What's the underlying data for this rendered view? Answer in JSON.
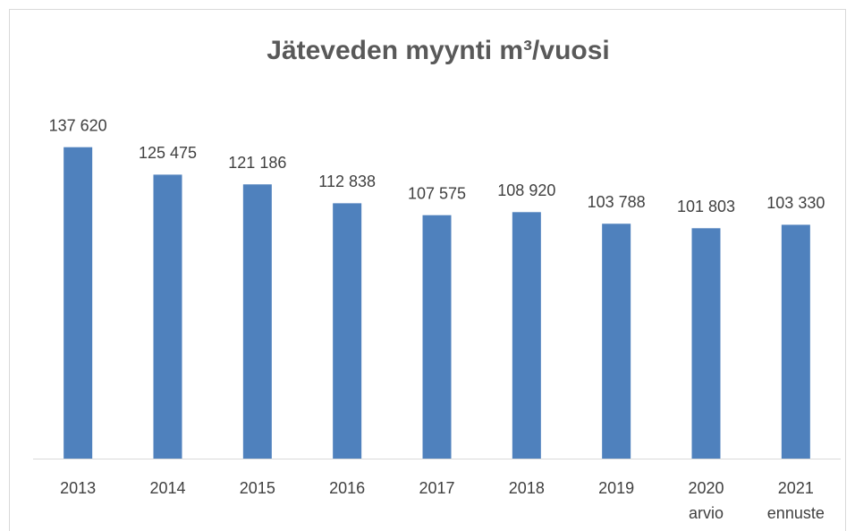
{
  "chart_data": {
    "type": "bar",
    "title": "Jäteveden myynti m³/vuosi",
    "categories": [
      "2013",
      "2014",
      "2015",
      "2016",
      "2017",
      "2018",
      "2019",
      "2020 arvio",
      "2021 ennuste"
    ],
    "values": [
      137620,
      125475,
      121186,
      112838,
      107575,
      108920,
      103788,
      101803,
      103330
    ],
    "value_labels": [
      "137 620",
      "125 475",
      "121 186",
      "112 838",
      "107 575",
      "108 920",
      "103 788",
      "101 803",
      "103 330"
    ],
    "color": "#4f81bd",
    "ylim": [
      0,
      160000
    ]
  }
}
